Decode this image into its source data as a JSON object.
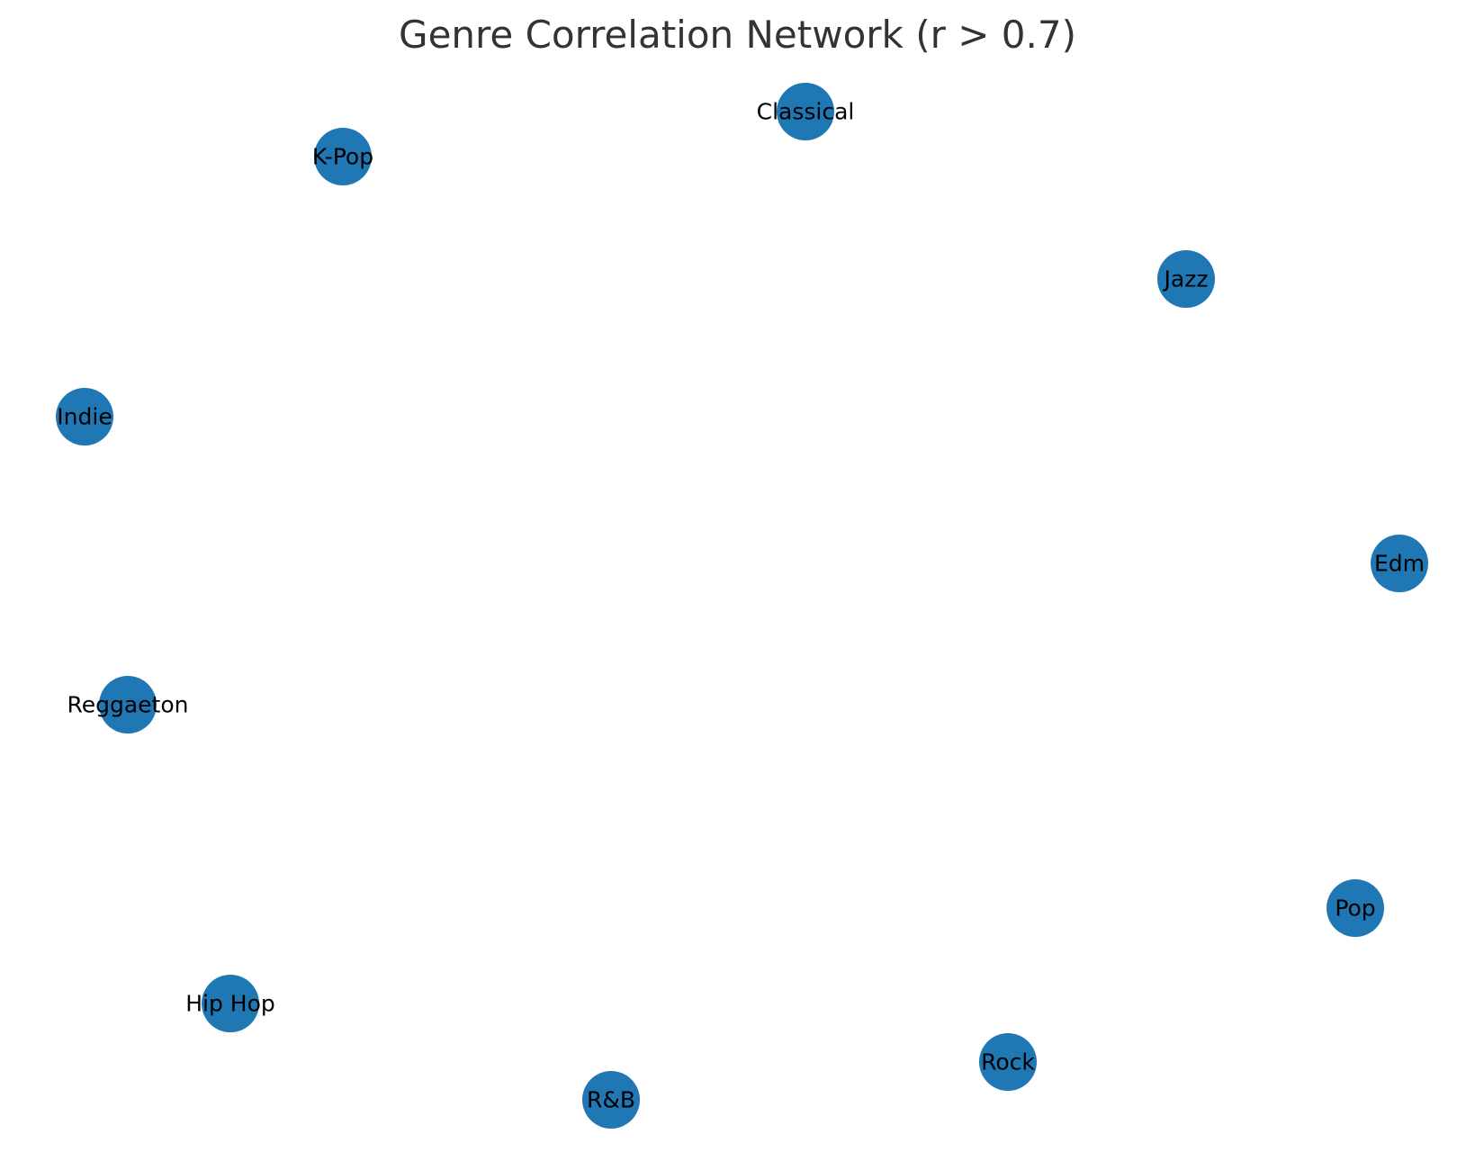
{
  "title": "Genre Correlation Network (r > 0.7)",
  "colors": {
    "node": "#1f77b4",
    "label": "#000000",
    "title": "#333333"
  },
  "nodes": [
    {
      "id": "classical",
      "label": "Classical"
    },
    {
      "id": "k-pop",
      "label": "K-Pop"
    },
    {
      "id": "jazz",
      "label": "Jazz"
    },
    {
      "id": "indie",
      "label": "Indie"
    },
    {
      "id": "edm",
      "label": "Edm"
    },
    {
      "id": "reggaeton",
      "label": "Reggaeton"
    },
    {
      "id": "pop",
      "label": "Pop"
    },
    {
      "id": "hip-hop",
      "label": "Hip Hop"
    },
    {
      "id": "rock",
      "label": "Rock"
    },
    {
      "id": "rnb",
      "label": "R&B"
    }
  ],
  "edges": []
}
